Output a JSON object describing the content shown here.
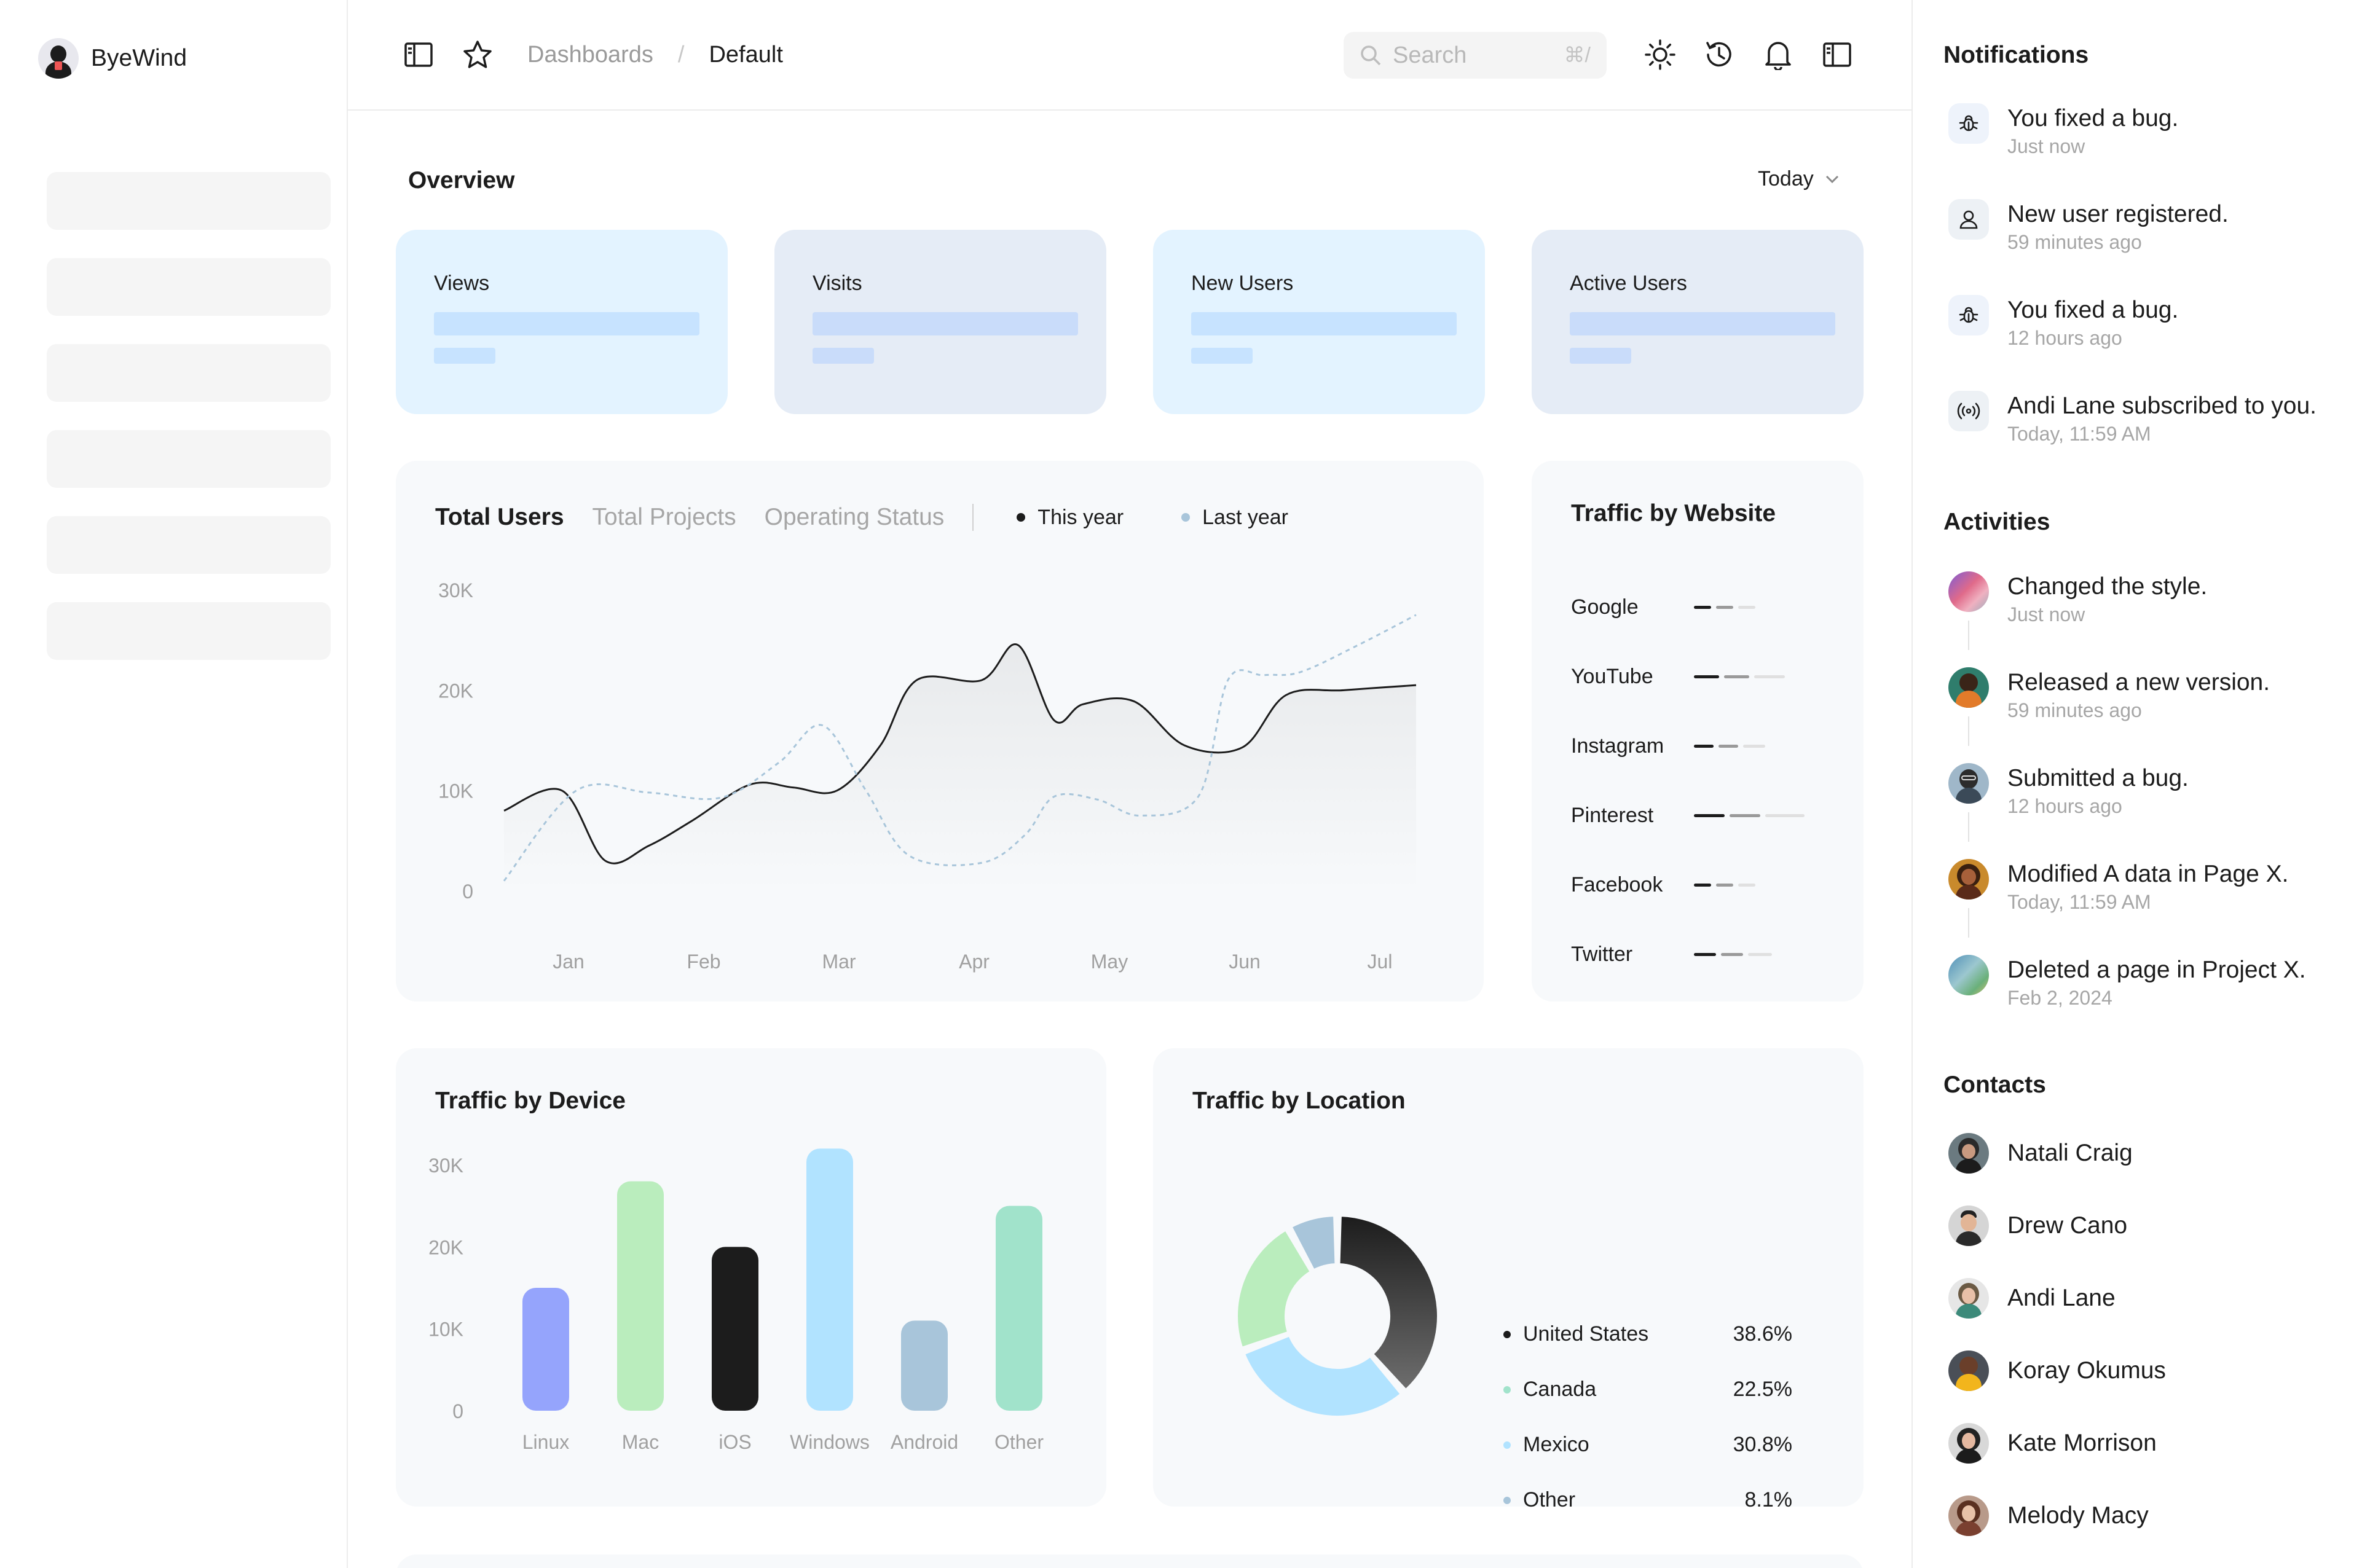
{
  "brand": {
    "name": "ByeWind"
  },
  "sidebar": {
    "placeholder_count": 6
  },
  "topbar": {
    "breadcrumb": [
      "Dashboards",
      "/",
      "Default"
    ],
    "search": {
      "placeholder": "Search",
      "shortcut": "⌘/"
    },
    "icons": [
      "sidebar-toggle-icon",
      "star-icon",
      "sun-icon",
      "history-icon",
      "bell-icon",
      "panel-toggle-icon"
    ]
  },
  "overview": {
    "title": "Overview",
    "range": "Today",
    "stats": [
      {
        "label": "Views"
      },
      {
        "label": "Visits"
      },
      {
        "label": "New Users"
      },
      {
        "label": "Active Users"
      }
    ]
  },
  "total_users": {
    "tabs": [
      "Total Users",
      "Total Projects",
      "Operating Status"
    ],
    "legend": [
      "This year",
      "Last year"
    ]
  },
  "traffic_website": {
    "title": "Traffic by Website",
    "sites": [
      {
        "name": "Google",
        "level": 0.25
      },
      {
        "name": "YouTube",
        "level": 0.55
      },
      {
        "name": "Instagram",
        "level": 0.35
      },
      {
        "name": "Pinterest",
        "level": 0.75
      },
      {
        "name": "Facebook",
        "level": 0.25
      },
      {
        "name": "Twitter",
        "level": 0.42
      }
    ]
  },
  "traffic_device": {
    "title": "Traffic by Device"
  },
  "traffic_location": {
    "title": "Traffic by Location",
    "rows": [
      {
        "name": "United States",
        "value": "38.6%"
      },
      {
        "name": "Canada",
        "value": "22.5%"
      },
      {
        "name": "Mexico",
        "value": "30.8%"
      },
      {
        "name": "Other",
        "value": "8.1%"
      }
    ]
  },
  "chart_data": [
    {
      "type": "line",
      "x": [
        "Jan",
        "Feb",
        "Mar",
        "Apr",
        "May",
        "Jun",
        "Jul"
      ],
      "ylim": [
        0,
        30000
      ],
      "yticks": [
        "0",
        "10K",
        "20K",
        "30K"
      ],
      "series": [
        {
          "name": "This year",
          "color": "#1c1c1c",
          "style": "solid",
          "x": [
            0,
            0.4,
            0.7,
            1.0,
            1.3,
            1.7,
            2.0,
            2.3,
            2.6,
            2.85,
            3.3,
            3.55,
            3.8,
            4.0,
            4.35,
            4.7,
            5.1,
            5.4,
            5.8,
            6.3
          ],
          "y": [
            8000,
            10000,
            3000,
            4500,
            7000,
            10600,
            10300,
            10000,
            14500,
            21000,
            21000,
            24500,
            17000,
            18600,
            18900,
            14500,
            14300,
            19500,
            20000,
            20500
          ]
        },
        {
          "name": "Last year",
          "color": "#a8c5da",
          "style": "dashed",
          "x": [
            0,
            0.5,
            1.0,
            1.5,
            1.9,
            2.2,
            2.5,
            2.8,
            3.3,
            3.6,
            3.8,
            4.1,
            4.4,
            4.8,
            5.0,
            5.25,
            5.5,
            5.9,
            6.3
          ],
          "y": [
            1000,
            10000,
            9800,
            9300,
            12800,
            16500,
            10000,
            3500,
            2800,
            5600,
            9400,
            9100,
            7500,
            9500,
            21000,
            21500,
            21800,
            24500,
            27500
          ]
        }
      ]
    },
    {
      "type": "bar",
      "categories": [
        "Linux",
        "Mac",
        "iOS",
        "Windows",
        "Android",
        "Other"
      ],
      "values": [
        15000,
        28000,
        20000,
        32000,
        11000,
        25000
      ],
      "colors": [
        "#95a4fc",
        "#baedbd",
        "#1c1c1c",
        "#b1e3ff",
        "#a8c5da",
        "#a1e3cb"
      ],
      "ylim": [
        0,
        30000
      ],
      "yticks": [
        "0",
        "10K",
        "20K",
        "30K"
      ]
    },
    {
      "type": "pie",
      "labels": [
        "United States",
        "Canada",
        "Mexico",
        "Other"
      ],
      "values": [
        38.6,
        22.5,
        30.8,
        8.1
      ],
      "colors": [
        "#1c1c1c",
        "#baedbd",
        "#b1e3ff",
        "#a8c5da"
      ]
    }
  ],
  "notifications": {
    "title": "Notifications",
    "items": [
      {
        "icon": "bug-icon",
        "text": "You fixed a bug.",
        "time": "Just now"
      },
      {
        "icon": "user-icon",
        "text": "New user registered.",
        "time": "59 minutes ago"
      },
      {
        "icon": "bug-icon",
        "text": "You fixed a bug.",
        "time": "12 hours ago"
      },
      {
        "icon": "broadcast-icon",
        "text": "Andi Lane subscribed to you.",
        "time": "Today, 11:59 AM"
      }
    ]
  },
  "activities": {
    "title": "Activities",
    "items": [
      {
        "text": "Changed the style.",
        "time": "Just now"
      },
      {
        "text": "Released a new version.",
        "time": "59 minutes ago"
      },
      {
        "text": "Submitted a bug.",
        "time": "12 hours ago"
      },
      {
        "text": "Modified A data in Page X.",
        "time": "Today, 11:59 AM"
      },
      {
        "text": "Deleted a page in Project X.",
        "time": "Feb 2, 2024"
      }
    ]
  },
  "contacts": {
    "title": "Contacts",
    "items": [
      "Natali Craig",
      "Drew Cano",
      "Andi Lane",
      "Koray Okumus",
      "Kate Morrison",
      "Melody Macy"
    ]
  }
}
